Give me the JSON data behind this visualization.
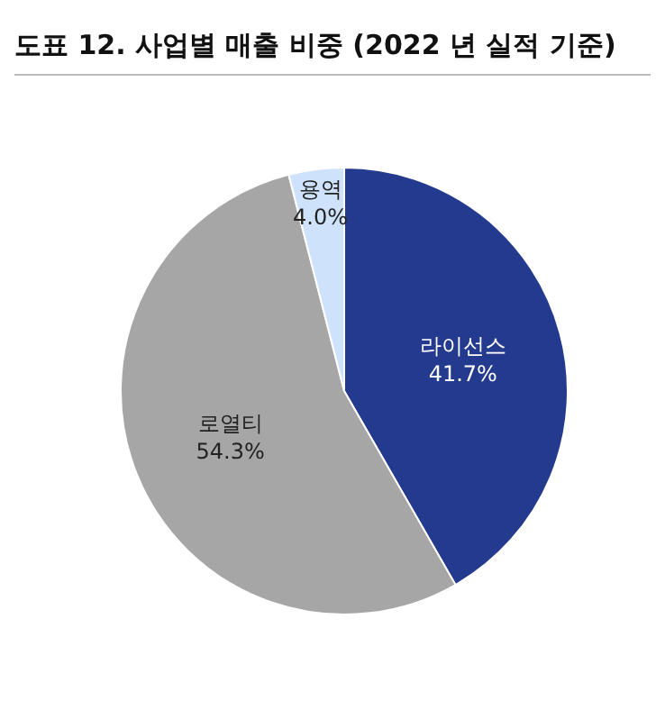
{
  "chart_data": {
    "type": "pie",
    "title": "도표 12.  사업별 매출 비중 (2022 년 실적 기준)",
    "categories": [
      "라이선스",
      "로열티",
      "용역"
    ],
    "values": [
      41.7,
      54.3,
      4.0
    ],
    "value_labels": [
      "41.7%",
      "54.3%",
      "4.0%"
    ],
    "colors": [
      "#233a8f",
      "#a6a6a6",
      "#cfe2fb"
    ]
  }
}
